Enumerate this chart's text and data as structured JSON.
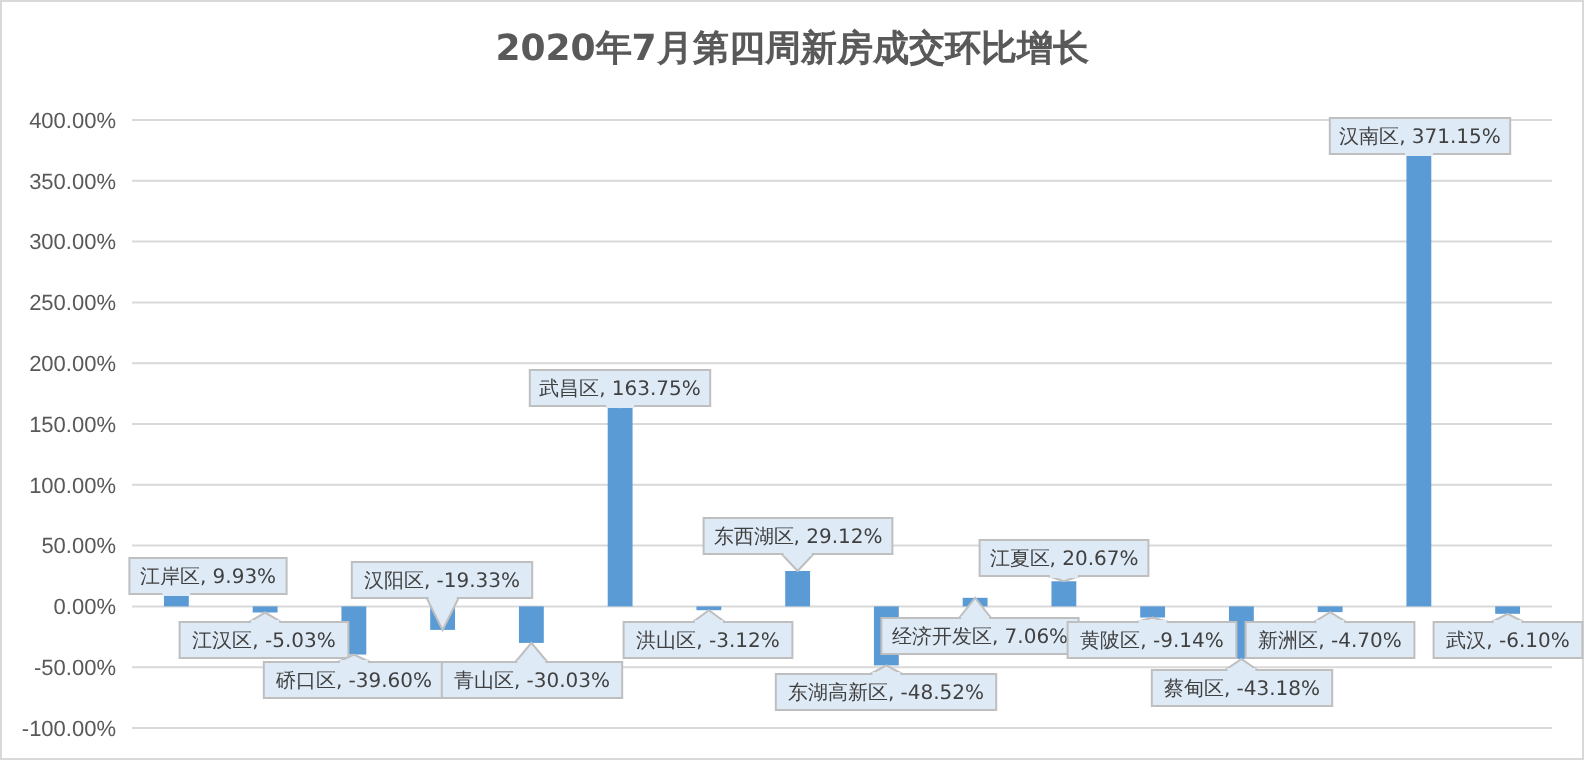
{
  "chart_data": {
    "type": "bar",
    "title": "2020年7月第四周新房成交环比增长",
    "categories": [
      null,
      null,
      null,
      null,
      null,
      null,
      null,
      null,
      null,
      null,
      null,
      null,
      null,
      null,
      null,
      null
    ],
    "values": [
      9.93,
      -5.03,
      -39.6,
      -19.33,
      -30.03,
      163.75,
      -3.12,
      29.12,
      -48.52,
      7.06,
      20.67,
      -9.14,
      -43.18,
      -4.7,
      371.15,
      -6.1
    ],
    "value_labels": [
      "江岸区, 9.93%",
      "江汉区, -5.03%",
      "硚口区, -39.60%",
      "汉阳区, -19.33%",
      "青山区, -30.03%",
      "武昌区, 163.75%",
      "洪山区, -3.12%",
      "东西湖区, 29.12%",
      "东湖高新区, -48.52%",
      "经济开发区, 7.06%",
      "江夏区, 20.67%",
      "黄陂区, -9.14%",
      "蔡甸区, -43.18%",
      "新洲区, -4.70%",
      "汉南区, 371.15%",
      "武汉, -6.10%"
    ],
    "color": "#5b9bd5",
    "ylim": [
      -100,
      400
    ],
    "yticks": [
      {
        "value": -100,
        "label": "-100.00%"
      },
      {
        "value": -50,
        "label": "-50.00%"
      },
      {
        "value": 0,
        "label": "0.00%"
      },
      {
        "value": 50,
        "label": "50.00%"
      },
      {
        "value": 100,
        "label": "100.00%"
      },
      {
        "value": 150,
        "label": "150.00%"
      },
      {
        "value": 200,
        "label": "200.00%"
      },
      {
        "value": 250,
        "label": "250.00%"
      },
      {
        "value": 300,
        "label": "300.00%"
      },
      {
        "value": 350,
        "label": "350.00%"
      },
      {
        "value": 400,
        "label": "400.00%"
      }
    ],
    "grid": "y"
  }
}
